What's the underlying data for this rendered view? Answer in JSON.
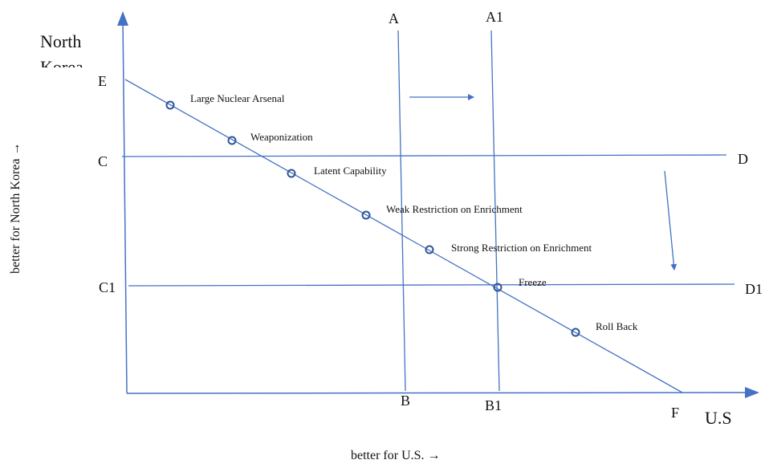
{
  "colors": {
    "line": "#4472C4",
    "text": "#111111",
    "background": "#ffffff"
  },
  "axes": {
    "y_axis_title": "North Korea",
    "x_axis_title": "U.S",
    "y_axis_caption": "better for North Korea →",
    "x_axis_caption": "better for U.S. →"
  },
  "point_labels": {
    "A": "A",
    "A1": "A1",
    "B": "B",
    "B1": "B1",
    "C": "C",
    "C1": "C1",
    "D": "D",
    "D1": "D1",
    "E": "E",
    "F": "F"
  },
  "outcomes": [
    {
      "label": "Large Nuclear Arsenal"
    },
    {
      "label": "Weaponization"
    },
    {
      "label": "Latent Capability"
    },
    {
      "label": "Weak Restriction on Enrichment"
    },
    {
      "label": "Strong Restriction on Enrichment"
    },
    {
      "label": "Freeze"
    },
    {
      "label": "Roll Back"
    }
  ]
}
